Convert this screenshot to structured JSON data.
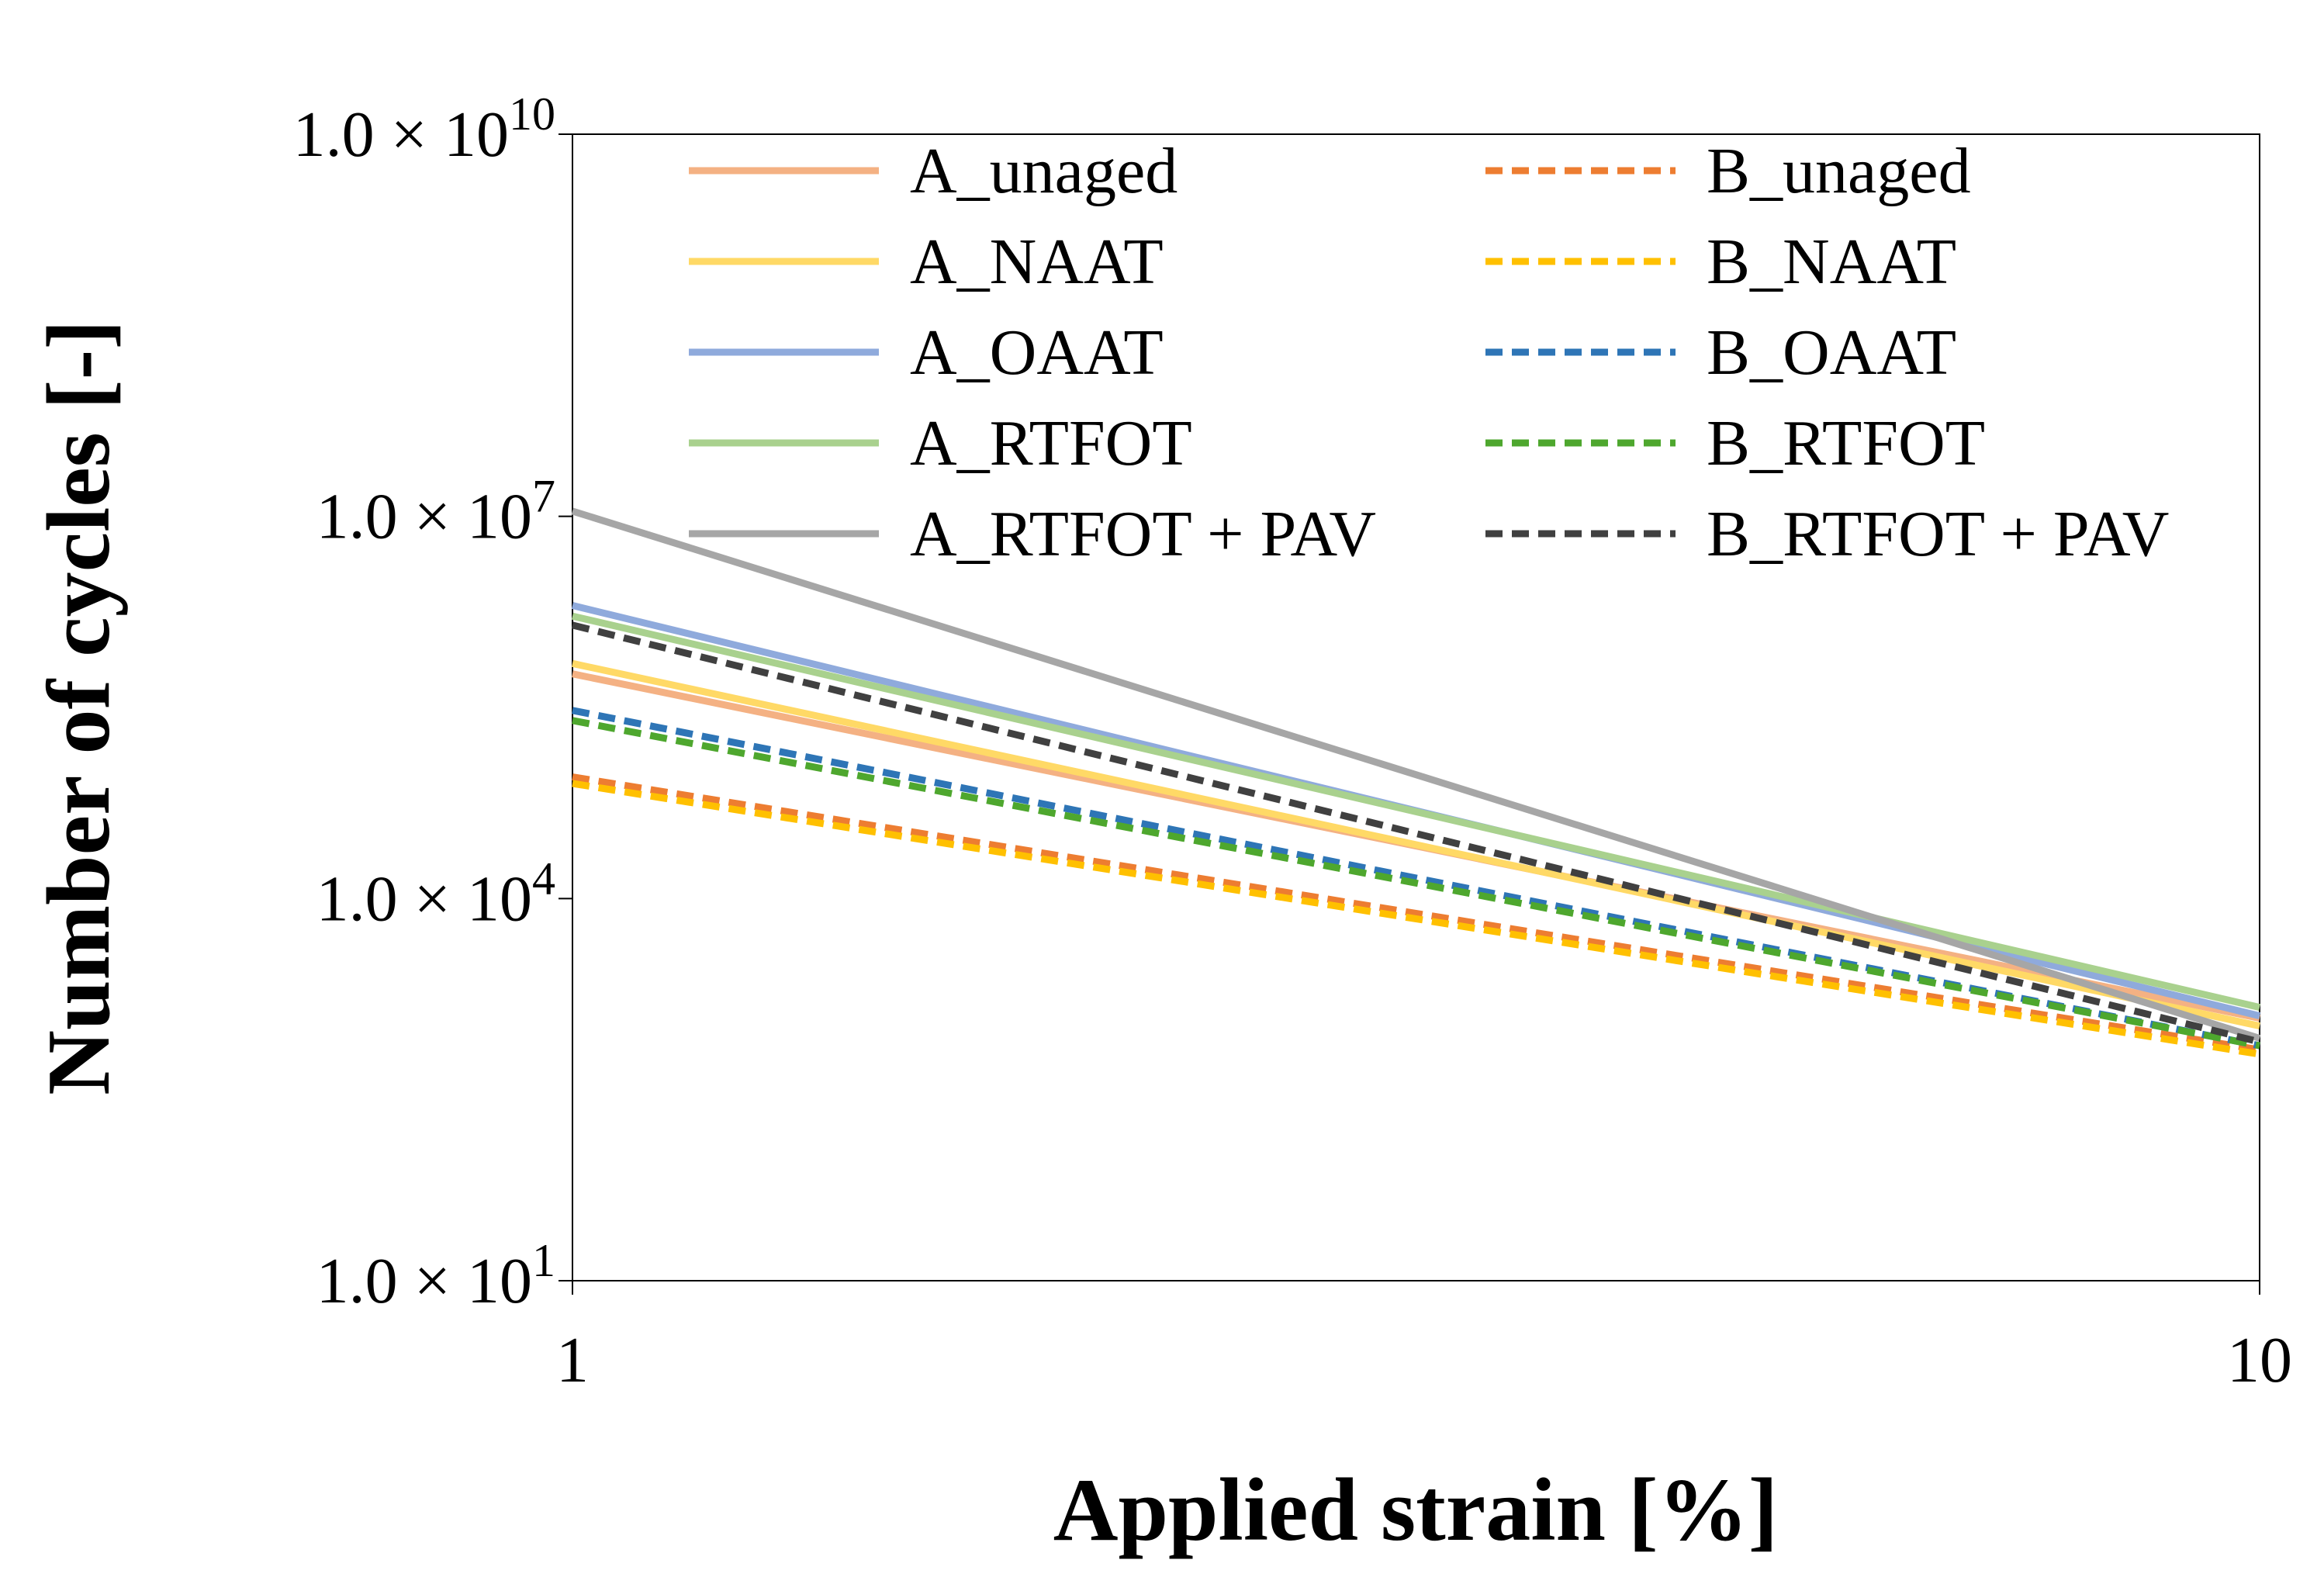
{
  "chart_data": {
    "type": "line",
    "title": "",
    "xlabel": "Applied strain [%]",
    "ylabel": "Number of cycles [-]",
    "x_scale": "log",
    "y_scale": "log",
    "xlim": [
      1,
      10
    ],
    "ylim": [
      10,
      10000000000
    ],
    "grid": false,
    "legend_position": "top-inside",
    "x_ticks": [
      {
        "value": 1,
        "label": "1"
      },
      {
        "value": 10,
        "label": "10"
      }
    ],
    "y_ticks": [
      {
        "value": 10,
        "mantissa": "1.0 × 10",
        "exponent": "1"
      },
      {
        "value": 10000,
        "mantissa": "1.0 × 10",
        "exponent": "4"
      },
      {
        "value": 10000000,
        "mantissa": "1.0 × 10",
        "exponent": "7"
      },
      {
        "value": 10000000000,
        "mantissa": "1.0 × 10",
        "exponent": "10"
      }
    ],
    "series": [
      {
        "name": "A_unaged",
        "color": "#f4b183",
        "dash": "solid",
        "x": [
          1,
          10
        ],
        "y": [
          580000,
          1150
        ]
      },
      {
        "name": "A_NAAT",
        "color": "#ffd966",
        "dash": "solid",
        "x": [
          1,
          10
        ],
        "y": [
          700000,
          1000
        ]
      },
      {
        "name": "A_OAAT",
        "color": "#8faadc",
        "dash": "solid",
        "x": [
          1,
          10
        ],
        "y": [
          2000000,
          1200
        ]
      },
      {
        "name": "A_RTFOT",
        "color": "#a9d18e",
        "dash": "solid",
        "x": [
          1,
          10
        ],
        "y": [
          1650000,
          1400
        ]
      },
      {
        "name": "A_RTFOT + PAV",
        "color": "#a6a6a6",
        "dash": "solid",
        "x": [
          1,
          10
        ],
        "y": [
          11000000,
          800
        ]
      },
      {
        "name": "B_unaged",
        "color": "#ed7d31",
        "dash": "dashed",
        "x": [
          1,
          10
        ],
        "y": [
          90000,
          650
        ]
      },
      {
        "name": "B_NAAT",
        "color": "#ffc000",
        "dash": "dashed",
        "x": [
          1,
          10
        ],
        "y": [
          80000,
          600
        ]
      },
      {
        "name": "B_OAAT",
        "color": "#2e75b6",
        "dash": "dashed",
        "x": [
          1,
          10
        ],
        "y": [
          300000,
          700
        ]
      },
      {
        "name": "B_RTFOT",
        "color": "#4ea72e",
        "dash": "dashed",
        "x": [
          1,
          10
        ],
        "y": [
          250000,
          700
        ]
      },
      {
        "name": "B_RTFOT + PAV",
        "color": "#404040",
        "dash": "dashed",
        "x": [
          1,
          10
        ],
        "y": [
          1400000,
          750
        ]
      }
    ]
  }
}
